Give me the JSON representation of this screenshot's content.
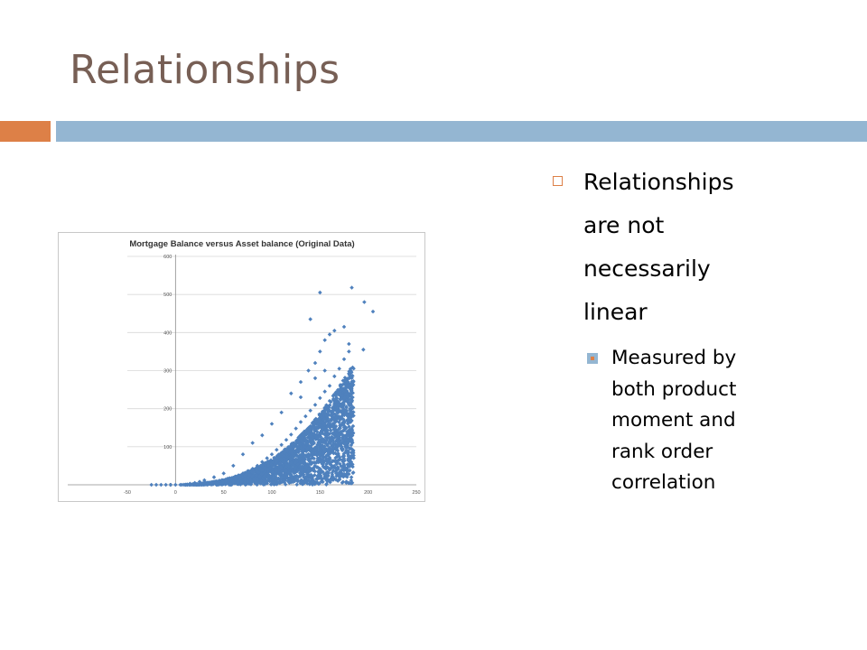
{
  "slide": {
    "title": "Relationships",
    "colors": {
      "title": "#775f55",
      "accent_orange": "#dd8047",
      "accent_blue": "#94b6d2",
      "marker": "#4f81bd"
    }
  },
  "bullets": {
    "main": {
      "lines": [
        "Relationships",
        "are not",
        "necessarily",
        "linear"
      ],
      "icon": "hollow-square-icon"
    },
    "sub": {
      "lines": [
        "Measured by",
        "both product",
        "moment and",
        "rank order",
        "correlation"
      ],
      "icon": "filled-square-icon"
    }
  },
  "chart_data": {
    "type": "scatter",
    "title": "Mortgage Balance versus Asset balance (Original Data)",
    "xlabel": "",
    "ylabel": "",
    "xlim": [
      -50,
      250
    ],
    "ylim": [
      0,
      600
    ],
    "x_ticks": [
      -50,
      0,
      50,
      100,
      150,
      200,
      250
    ],
    "y_ticks": [
      0,
      100,
      200,
      300,
      400,
      500,
      600
    ],
    "grid": "horizontal",
    "legend": "none",
    "marker_color": "#4f81bd",
    "points": [
      [
        0,
        0
      ],
      [
        5,
        0
      ],
      [
        10,
        0
      ],
      [
        15,
        1
      ],
      [
        20,
        1
      ],
      [
        25,
        2
      ],
      [
        30,
        3
      ],
      [
        35,
        5
      ],
      [
        40,
        6
      ],
      [
        45,
        8
      ],
      [
        50,
        10
      ],
      [
        55,
        14
      ],
      [
        60,
        18
      ],
      [
        65,
        24
      ],
      [
        70,
        30
      ],
      [
        75,
        36
      ],
      [
        80,
        42
      ],
      [
        85,
        50
      ],
      [
        90,
        60
      ],
      [
        95,
        70
      ],
      [
        100,
        80
      ],
      [
        105,
        92
      ],
      [
        110,
        105
      ],
      [
        115,
        118
      ],
      [
        120,
        132
      ],
      [
        125,
        148
      ],
      [
        130,
        165
      ],
      [
        135,
        180
      ],
      [
        140,
        195
      ],
      [
        145,
        210
      ],
      [
        150,
        228
      ],
      [
        155,
        245
      ],
      [
        160,
        260
      ],
      [
        165,
        285
      ],
      [
        170,
        305
      ],
      [
        175,
        330
      ],
      [
        180,
        350
      ],
      [
        120,
        240
      ],
      [
        130,
        270
      ],
      [
        138,
        300
      ],
      [
        145,
        320
      ],
      [
        150,
        350
      ],
      [
        155,
        380
      ],
      [
        160,
        395
      ],
      [
        165,
        405
      ],
      [
        150,
        505
      ],
      [
        183,
        518
      ],
      [
        196,
        480
      ],
      [
        205,
        455
      ],
      [
        175,
        415
      ],
      [
        180,
        370
      ],
      [
        195,
        355
      ],
      [
        140,
        435
      ],
      [
        155,
        300
      ],
      [
        145,
        280
      ],
      [
        130,
        230
      ],
      [
        110,
        190
      ],
      [
        100,
        160
      ],
      [
        90,
        130
      ],
      [
        80,
        110
      ],
      [
        70,
        80
      ],
      [
        60,
        50
      ],
      [
        50,
        30
      ],
      [
        40,
        20
      ],
      [
        30,
        12
      ],
      [
        25,
        8
      ],
      [
        20,
        5
      ],
      [
        15,
        3
      ],
      [
        -15,
        0
      ],
      [
        -20,
        0
      ],
      [
        -25,
        0
      ],
      [
        -10,
        0
      ],
      [
        -5,
        0
      ]
    ]
  }
}
